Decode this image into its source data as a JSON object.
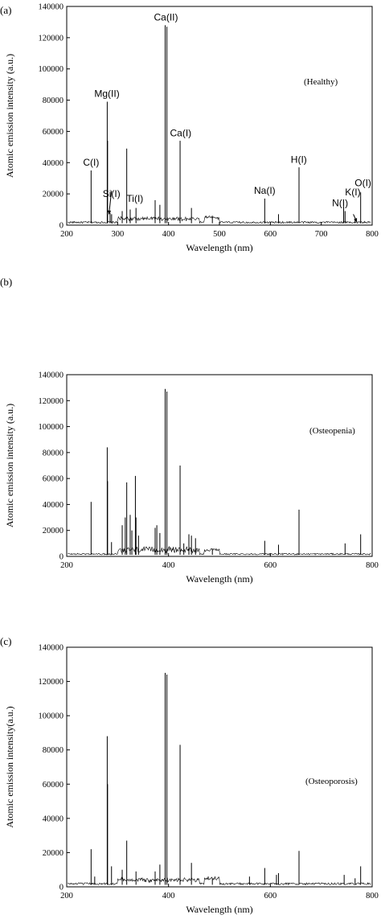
{
  "chart_data": [
    {
      "type": "line",
      "panel_label": "(a)",
      "annotation": "(Healthy)",
      "xlabel": "Wavelength (nm)",
      "ylabel": "Atomic emission intensity (a.u.)",
      "xlim": [
        200,
        800
      ],
      "ylim": [
        0,
        140000
      ],
      "x_ticks": [
        200,
        300,
        400,
        500,
        600,
        700,
        800
      ],
      "y_ticks": [
        0,
        20000,
        40000,
        60000,
        80000,
        100000,
        120000,
        140000
      ],
      "peaks": [
        {
          "x": 247.9,
          "y": 35000
        },
        {
          "x": 279.6,
          "y": 79000
        },
        {
          "x": 280.3,
          "y": 54000
        },
        {
          "x": 285.2,
          "y": 8000
        },
        {
          "x": 288.2,
          "y": 7000
        },
        {
          "x": 309,
          "y": 9000
        },
        {
          "x": 317.9,
          "y": 49000
        },
        {
          "x": 324.7,
          "y": 10000
        },
        {
          "x": 336.1,
          "y": 11000
        },
        {
          "x": 373.7,
          "y": 16000
        },
        {
          "x": 383,
          "y": 13000
        },
        {
          "x": 393.4,
          "y": 128000
        },
        {
          "x": 396.8,
          "y": 127000
        },
        {
          "x": 422.7,
          "y": 54000
        },
        {
          "x": 445,
          "y": 11000
        },
        {
          "x": 486.1,
          "y": 6000
        },
        {
          "x": 589,
          "y": 17000
        },
        {
          "x": 616,
          "y": 7000
        },
        {
          "x": 656.3,
          "y": 37000
        },
        {
          "x": 744,
          "y": 12000
        },
        {
          "x": 746.8,
          "y": 9000
        },
        {
          "x": 766.5,
          "y": 4000
        },
        {
          "x": 777.4,
          "y": 21000
        }
      ],
      "peak_labels": [
        {
          "text": "C(I)",
          "x": 248,
          "y": 38000
        },
        {
          "text": "Mg(II)",
          "x": 279,
          "y": 82000
        },
        {
          "text": "Si(I)",
          "x": 288,
          "y": 18000
        },
        {
          "text": "Ti(I)",
          "x": 334,
          "y": 15000
        },
        {
          "text": "Ca(II)",
          "x": 395,
          "y": 131000
        },
        {
          "text": "Ca(I)",
          "x": 424,
          "y": 57000
        },
        {
          "text": "Na(I)",
          "x": 589,
          "y": 20000
        },
        {
          "text": "H(I)",
          "x": 656,
          "y": 40000
        },
        {
          "text": "N(I)",
          "x": 737,
          "y": 12000
        },
        {
          "text": "K(I)",
          "x": 762,
          "y": 19000
        },
        {
          "text": "O(I)",
          "x": 782,
          "y": 25000
        }
      ]
    },
    {
      "type": "line",
      "panel_label": "(b)",
      "annotation": "(Osteopenia)",
      "xlabel": "Wavelength (nm)",
      "ylabel": "Atomic emission intensity (a.u.)",
      "xlim": [
        200,
        800
      ],
      "ylim": [
        0,
        140000
      ],
      "x_ticks": [
        200,
        400,
        600,
        800
      ],
      "y_ticks": [
        0,
        20000,
        40000,
        60000,
        80000,
        100000,
        120000,
        140000
      ],
      "peaks": [
        {
          "x": 247.9,
          "y": 42000
        },
        {
          "x": 279.6,
          "y": 84000
        },
        {
          "x": 280.3,
          "y": 58000
        },
        {
          "x": 288,
          "y": 11000
        },
        {
          "x": 309,
          "y": 24000
        },
        {
          "x": 315,
          "y": 30000
        },
        {
          "x": 317.9,
          "y": 57000
        },
        {
          "x": 324.7,
          "y": 32000
        },
        {
          "x": 328,
          "y": 20000
        },
        {
          "x": 334.9,
          "y": 62000
        },
        {
          "x": 336.1,
          "y": 30000
        },
        {
          "x": 341,
          "y": 16000
        },
        {
          "x": 373.7,
          "y": 22000
        },
        {
          "x": 377,
          "y": 24000
        },
        {
          "x": 383,
          "y": 18000
        },
        {
          "x": 393.4,
          "y": 129000
        },
        {
          "x": 396.8,
          "y": 127000
        },
        {
          "x": 422.7,
          "y": 70000
        },
        {
          "x": 430,
          "y": 10000
        },
        {
          "x": 440,
          "y": 17000
        },
        {
          "x": 445,
          "y": 16000
        },
        {
          "x": 453,
          "y": 14000
        },
        {
          "x": 486.1,
          "y": 6000
        },
        {
          "x": 589,
          "y": 12000
        },
        {
          "x": 616,
          "y": 9000
        },
        {
          "x": 656.3,
          "y": 36000
        },
        {
          "x": 746.8,
          "y": 10000
        },
        {
          "x": 777.4,
          "y": 17000
        }
      ]
    },
    {
      "type": "line",
      "panel_label": "(c)",
      "annotation": "(Osteoporosis)",
      "xlabel": "Wavelength (nm)",
      "ylabel": "Atomic emission intensity(a.u.)",
      "xlim": [
        200,
        800
      ],
      "ylim": [
        0,
        140000
      ],
      "x_ticks": [
        200,
        400,
        600,
        800
      ],
      "y_ticks": [
        0,
        20000,
        40000,
        60000,
        80000,
        100000,
        120000,
        140000
      ],
      "peaks": [
        {
          "x": 247.9,
          "y": 22000
        },
        {
          "x": 255,
          "y": 6000
        },
        {
          "x": 279.6,
          "y": 88000
        },
        {
          "x": 280.3,
          "y": 60000
        },
        {
          "x": 288,
          "y": 12000
        },
        {
          "x": 309,
          "y": 10000
        },
        {
          "x": 317.9,
          "y": 27000
        },
        {
          "x": 336.1,
          "y": 9000
        },
        {
          "x": 373.7,
          "y": 9000
        },
        {
          "x": 383,
          "y": 13000
        },
        {
          "x": 393.4,
          "y": 125000
        },
        {
          "x": 396.8,
          "y": 124000
        },
        {
          "x": 422.7,
          "y": 83000
        },
        {
          "x": 445,
          "y": 14000
        },
        {
          "x": 486.1,
          "y": 5000
        },
        {
          "x": 559,
          "y": 6000
        },
        {
          "x": 589,
          "y": 11000
        },
        {
          "x": 612,
          "y": 7000
        },
        {
          "x": 616,
          "y": 8000
        },
        {
          "x": 656.3,
          "y": 21000
        },
        {
          "x": 745,
          "y": 7000
        },
        {
          "x": 766.5,
          "y": 5000
        },
        {
          "x": 777.4,
          "y": 12000
        }
      ]
    }
  ]
}
